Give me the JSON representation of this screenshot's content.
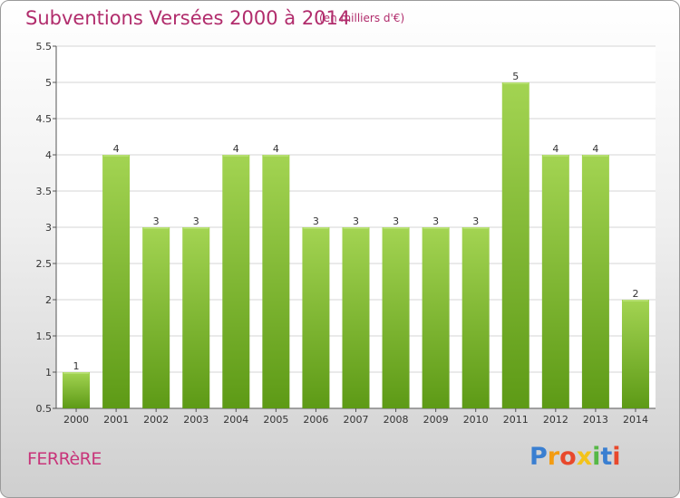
{
  "header": {
    "title": "Subventions Versées 2000 à 2014",
    "unit": "(en milliers d'€)"
  },
  "footer": {
    "commune": "FERRèRE",
    "logo_letters": [
      "P",
      "r",
      "o",
      "x",
      "i",
      "t",
      "i"
    ],
    "logo_colors": [
      "#3a7fd1",
      "#f39c12",
      "#e8482c",
      "#f3c31a",
      "#56b846",
      "#3a7fd1",
      "#e8482c"
    ]
  },
  "colors": {
    "bar_top": "#a3d452",
    "bar_bottom": "#5d9a16",
    "grid": "#d4d4d4",
    "axis": "#555555",
    "text": "#333333"
  },
  "chart_data": {
    "type": "bar",
    "title": "Subventions Versées 2000 à 2014",
    "xlabel": "",
    "ylabel": "",
    "categories": [
      "2000",
      "2001",
      "2002",
      "2003",
      "2004",
      "2005",
      "2006",
      "2007",
      "2008",
      "2009",
      "2010",
      "2011",
      "2012",
      "2013",
      "2014"
    ],
    "values": [
      1,
      4,
      3,
      3,
      4,
      4,
      3,
      3,
      3,
      3,
      3,
      5,
      4,
      4,
      2
    ],
    "data_labels": [
      "1",
      "4",
      "3",
      "3",
      "4",
      "4",
      "3",
      "3",
      "3",
      "3",
      "3",
      "5",
      "4",
      "4",
      "2"
    ],
    "yticks": [
      "0.5",
      "1",
      "1.5",
      "2",
      "2.5",
      "3",
      "3.5",
      "4",
      "4.5",
      "5",
      "5.5"
    ],
    "ylim": [
      0.5,
      5.5
    ],
    "grid": true,
    "legend": "none"
  }
}
